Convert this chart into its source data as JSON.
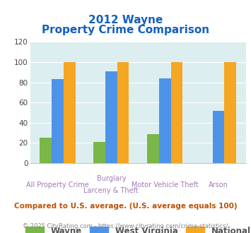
{
  "title_line1": "2012 Wayne",
  "title_line2": "Property Crime Comparison",
  "cat_labels_line1": [
    "All Property Crime",
    "Burglary",
    "Motor Vehicle Theft",
    "Arson"
  ],
  "cat_labels_line2": [
    "",
    "Larceny & Theft",
    "",
    ""
  ],
  "wayne": [
    25,
    21,
    29,
    0
  ],
  "west_virginia": [
    83,
    91,
    84,
    52
  ],
  "national": [
    100,
    100,
    100,
    100
  ],
  "wayne_color": "#7ab648",
  "wv_color": "#4d94e8",
  "national_color": "#f5a623",
  "bg_color": "#ddeef0",
  "title_color": "#1560bd",
  "xlabel_color": "#9e7bb5",
  "legend_label_color": "#555555",
  "footer_color": "#888888",
  "note_color": "#c05000",
  "ylim": [
    0,
    120
  ],
  "yticks": [
    0,
    20,
    40,
    60,
    80,
    100,
    120
  ],
  "note_text": "Compared to U.S. average. (U.S. average equals 100)",
  "footer_text": "© 2025 CityRating.com - https://www.cityrating.com/crime-statistics/"
}
